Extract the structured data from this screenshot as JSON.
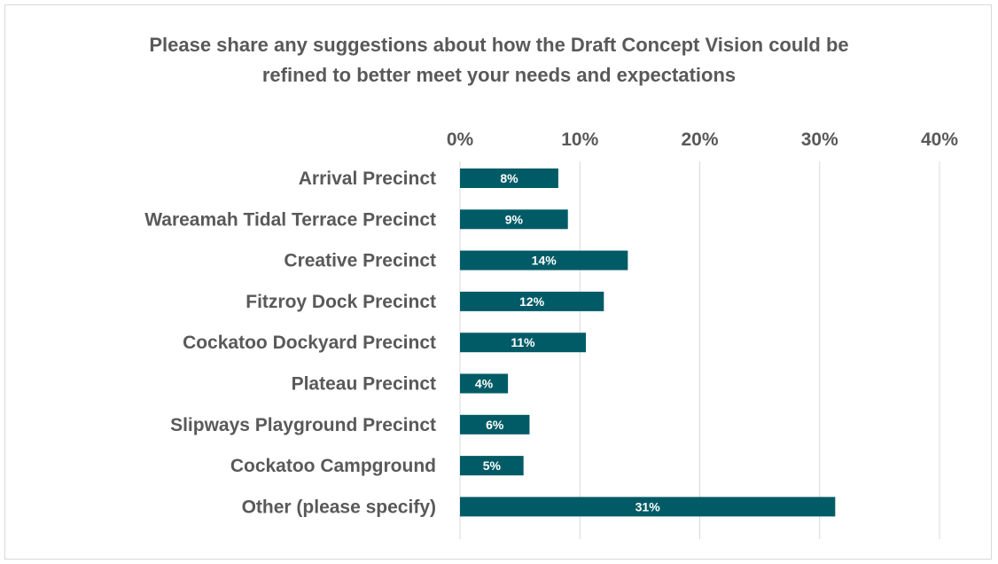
{
  "chart_data": {
    "type": "bar",
    "orientation": "horizontal",
    "title": "Please share any suggestions about how the Draft Concept Vision could be refined to better meet your needs and expectations",
    "title_lines": [
      "Please share any suggestions about how the Draft Concept Vision could be",
      "refined to better meet your needs and expectations"
    ],
    "categories": [
      "Arrival Precinct",
      "Wareamah Tidal Terrace Precinct",
      "Creative Precinct",
      "Fitzroy Dock Precinct",
      "Cockatoo Dockyard Precinct",
      "Plateau Precinct",
      "Slipways Playground Precinct",
      "Cockatoo Campground",
      "Other (please specify)"
    ],
    "values": [
      8.2,
      9.0,
      14.0,
      12.0,
      10.5,
      4.0,
      5.8,
      5.3,
      31.3
    ],
    "data_labels": [
      "8%",
      "9%",
      "14%",
      "12%",
      "11%",
      "4%",
      "6%",
      "5%",
      "31%"
    ],
    "xlim": [
      0,
      40
    ],
    "x_ticks": [
      0,
      10,
      20,
      30,
      40
    ],
    "x_tick_labels": [
      "0%",
      "10%",
      "20%",
      "30%",
      "40%"
    ],
    "x_axis_position": "top",
    "grid": true,
    "legend": "none",
    "xlabel": "",
    "ylabel": "",
    "bar_color": "#005b66",
    "grid_color": "#d9d9d9",
    "text_color": "#595959",
    "label_color": "#ffffff"
  }
}
